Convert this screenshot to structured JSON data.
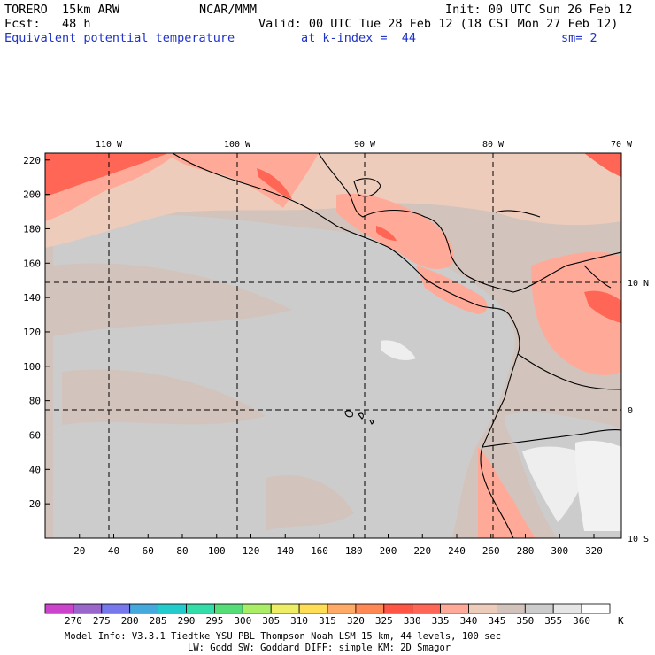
{
  "header": {
    "model": "TORERO  15km ARW",
    "org": "NCAR/MMM",
    "init": "Init: 00 UTC Sun 26 Feb 12",
    "fcst": "Fcst:   48 h",
    "valid": "Valid: 00 UTC Tue 28 Feb 12 (18 CST Mon 27 Feb 12)",
    "field": "Equivalent potential temperature",
    "level": "at k-index =  44",
    "smooth": "sm= 2"
  },
  "map": {
    "lon_labels": [
      "110 W",
      "100 W",
      "90 W",
      "80 W",
      "70 W"
    ],
    "lat_labels": [
      "10 N",
      "0",
      "10 S"
    ],
    "x_ticks": [
      "20",
      "40",
      "60",
      "80",
      "100",
      "120",
      "140",
      "160",
      "180",
      "200",
      "220",
      "240",
      "260",
      "280",
      "300",
      "320"
    ],
    "y_ticks": [
      "20",
      "40",
      "60",
      "80",
      "100",
      "120",
      "140",
      "160",
      "180",
      "200",
      "220"
    ]
  },
  "colorbar": {
    "labels": [
      "270",
      "275",
      "280",
      "285",
      "290",
      "295",
      "300",
      "305",
      "310",
      "315",
      "320",
      "325",
      "330",
      "335",
      "340",
      "345",
      "350",
      "355",
      "360"
    ],
    "unit": "K",
    "colors": [
      "#cc44cc",
      "#9966cc",
      "#7777ee",
      "#44aadd",
      "#22cccc",
      "#33ddaa",
      "#55dd77",
      "#aaee66",
      "#eeee66",
      "#ffdd55",
      "#ffaa66",
      "#ff8855",
      "#ff5544",
      "#ff6655",
      "#ffaa99",
      "#eeccbb",
      "#d2c4bc",
      "#cccccc",
      "#e6e6e6",
      "#ffffff"
    ]
  },
  "footer": {
    "line1": "Model Info: V3.3.1    Tiedtke YSU PBL  Thompson    Noah LSM  15 km,   44 levels,  100 sec",
    "line2": "LW: Godd SW: Goddard DIFF: simple KM: 2D Smagor"
  }
}
